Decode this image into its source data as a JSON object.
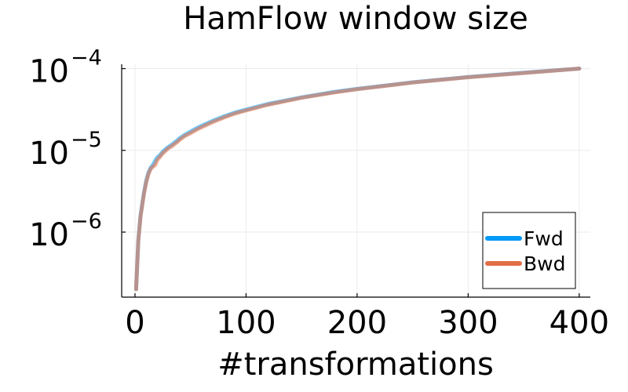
{
  "chart_data": {
    "type": "line",
    "title": "HamFlow window size",
    "xlabel": "#transformations",
    "ylabel": "",
    "yscale": "log",
    "xlim": [
      -12,
      410
    ],
    "ylim": [
      1.6e-07,
      0.000113
    ],
    "grid": true,
    "legend_position": "bottom-right",
    "x_ticks": [
      {
        "value": 0,
        "label": "0"
      },
      {
        "value": 100,
        "label": "100"
      },
      {
        "value": 200,
        "label": "200"
      },
      {
        "value": 300,
        "label": "300"
      },
      {
        "value": 400,
        "label": "400"
      }
    ],
    "y_ticks": [
      {
        "value": 1e-06,
        "base": "10",
        "exp": "−6"
      },
      {
        "value": 1e-05,
        "base": "10",
        "exp": "−5"
      },
      {
        "value": 0.0001,
        "base": "10",
        "exp": "−4"
      }
    ],
    "series": [
      {
        "name": "Fwd",
        "color": "#009af9",
        "x": [
          1,
          3,
          5,
          8,
          10,
          12,
          14,
          16,
          18,
          20,
          22,
          25,
          28,
          30,
          33,
          35,
          38,
          40,
          45,
          50,
          55,
          60,
          70,
          80,
          90,
          100,
          120,
          150,
          180,
          200,
          250,
          300,
          350,
          400
        ],
        "y": [
          2e-07,
          8e-07,
          1.6e-06,
          3e-06,
          4.2e-06,
          5.3e-06,
          6.1e-06,
          6.6e-06,
          7.4e-06,
          8.2e-06,
          8.6e-06,
          9.6e-06,
          1.05e-05,
          1.1e-05,
          1.17e-05,
          1.23e-05,
          1.32e-05,
          1.4e-05,
          1.55e-05,
          1.7e-05,
          1.85e-05,
          2e-05,
          2.3e-05,
          2.6e-05,
          2.9e-05,
          3.15e-05,
          3.7e-05,
          4.45e-05,
          5.2e-05,
          5.65e-05,
          6.8e-05,
          7.9e-05,
          8.9e-05,
          0.0001
        ]
      },
      {
        "name": "Bwd",
        "color": "#e26f46",
        "x": [
          1,
          3,
          5,
          8,
          10,
          12,
          14,
          16,
          18,
          20,
          22,
          25,
          28,
          30,
          33,
          35,
          38,
          40,
          45,
          50,
          55,
          60,
          70,
          80,
          90,
          100,
          120,
          150,
          180,
          200,
          250,
          300,
          350,
          400
        ],
        "y": [
          2e-07,
          7.8e-07,
          1.55e-06,
          2.9e-06,
          4e-06,
          5.1e-06,
          5.9e-06,
          6.3e-06,
          6.6e-06,
          7.6e-06,
          8.2e-06,
          9.2e-06,
          1e-05,
          1.06e-05,
          1.12e-05,
          1.18e-05,
          1.26e-05,
          1.34e-05,
          1.5e-05,
          1.62e-05,
          1.78e-05,
          1.92e-05,
          2.22e-05,
          2.52e-05,
          2.82e-05,
          3.08e-05,
          3.62e-05,
          4.4e-05,
          5.12e-05,
          5.6e-05,
          6.75e-05,
          7.85e-05,
          8.85e-05,
          0.0001
        ]
      }
    ]
  }
}
